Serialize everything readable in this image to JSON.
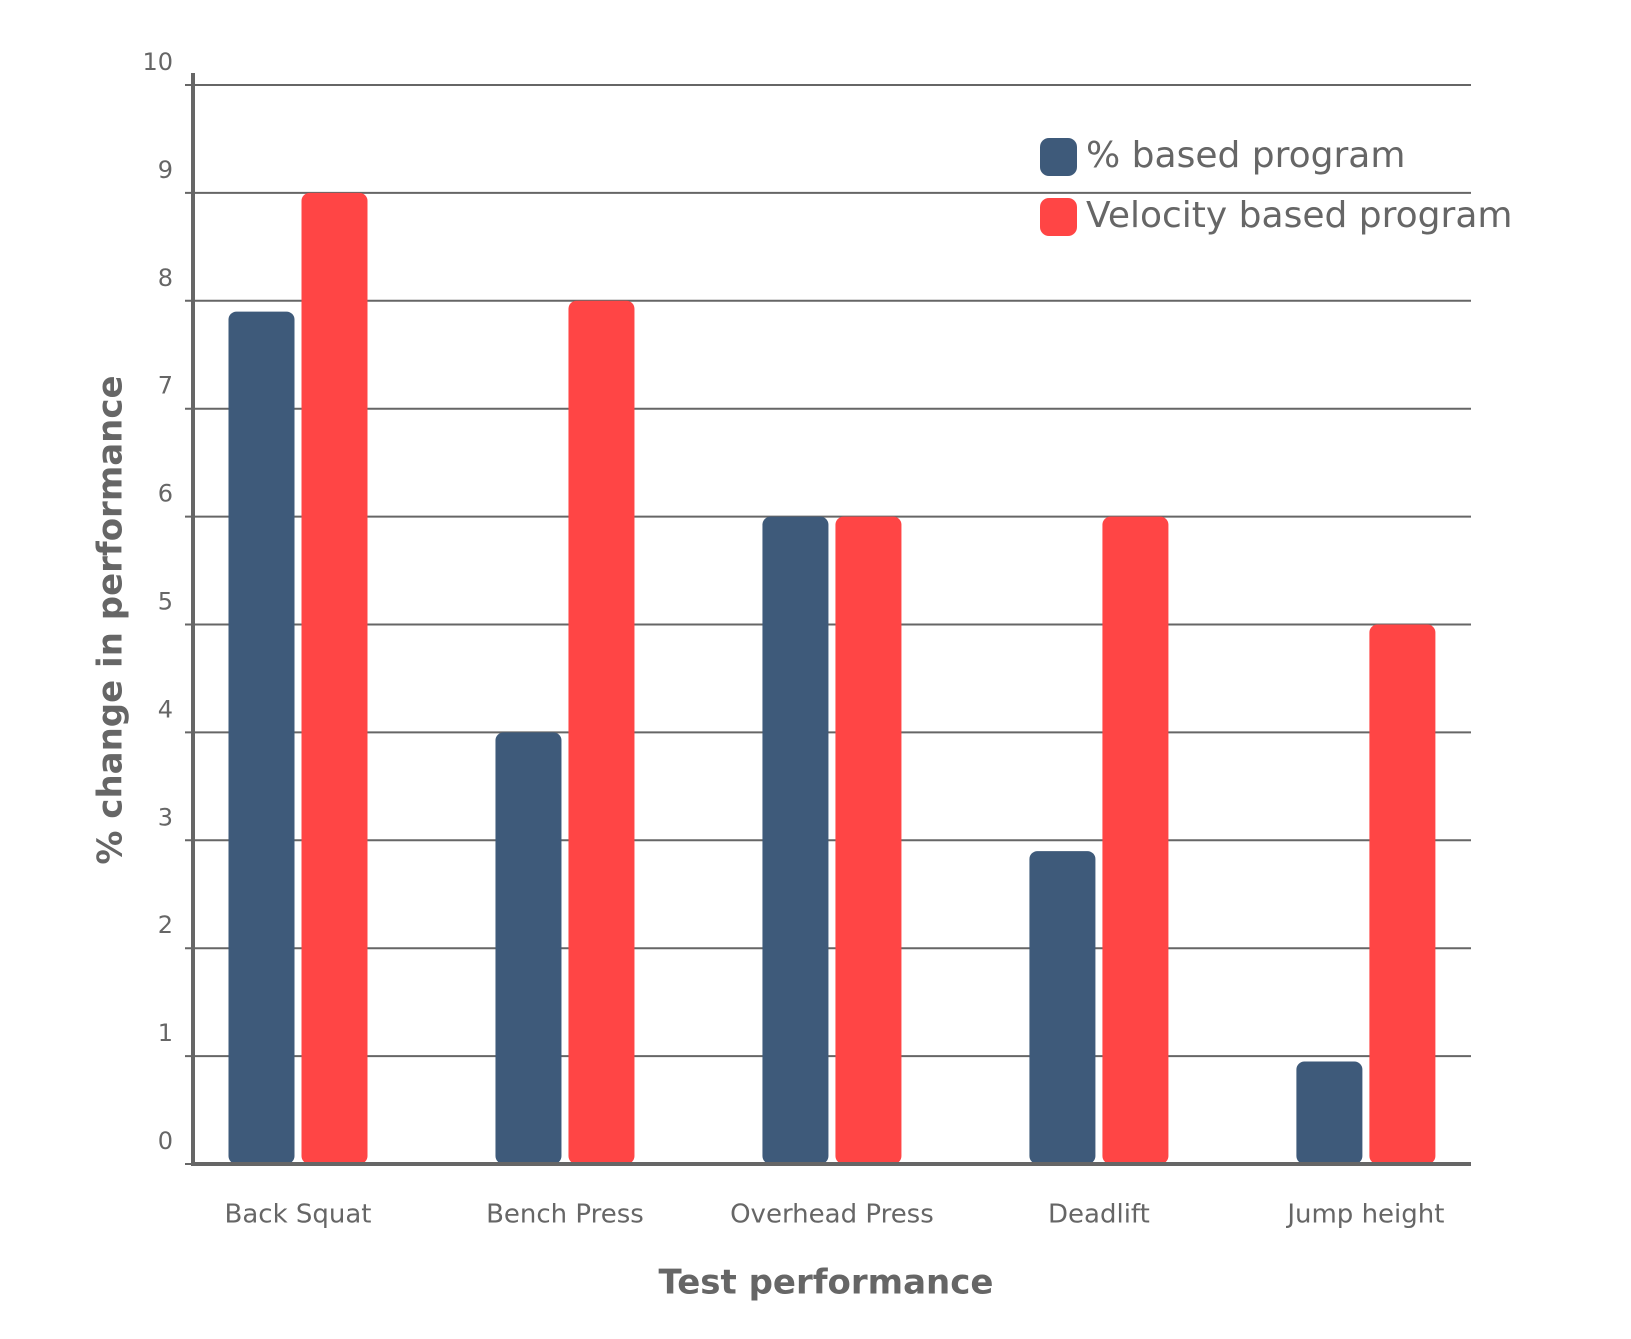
{
  "chart_data": {
    "type": "bar",
    "x_label": "Test performance",
    "y_label": "% change in performance",
    "categories": [
      "Back Squat",
      "Bench Press",
      "Overhead Press",
      "Deadlift",
      "Jump height"
    ],
    "series": [
      {
        "name": "% based program",
        "color": "#3e5a7a",
        "values": [
          7.9,
          4,
          6,
          2.9,
          0.95
        ]
      },
      {
        "name": "Velocity based program",
        "color": "#ff4545",
        "values": [
          9,
          8,
          6,
          6,
          5
        ]
      }
    ],
    "ylim": [
      0,
      10
    ],
    "yticks": [
      0,
      1,
      2,
      3,
      4,
      5,
      6,
      7,
      8,
      9,
      10
    ],
    "grid": true,
    "legend": "top-right"
  }
}
